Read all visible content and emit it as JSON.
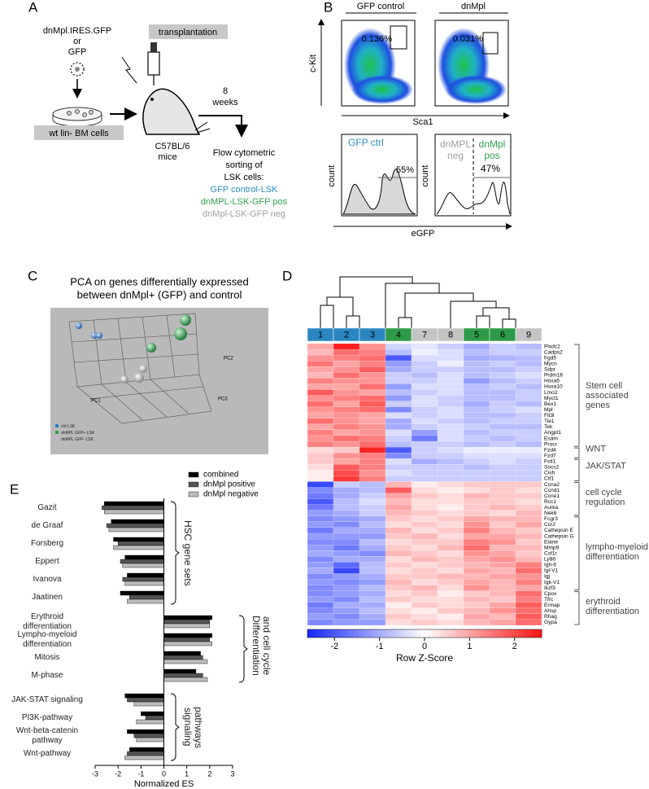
{
  "panel_labels": {
    "a": "A",
    "b": "B",
    "c": "C",
    "d": "D",
    "e": "E"
  },
  "panel_a": {
    "vector_lines": [
      "dnMpl.IRES.GFP",
      "or",
      "GFP"
    ],
    "transplantation": "transplantation",
    "cells": "wt lin- BM cells",
    "mouse_lines": [
      "C57BL/6",
      "mice"
    ],
    "time_lines": [
      "8",
      "weeks"
    ],
    "sorting_lines": [
      "Flow cytometric",
      "sorting of",
      "LSK cells:"
    ],
    "populations": [
      {
        "label": "GFP control-LSK",
        "color": "#2a8fc4"
      },
      {
        "label": "dnMPL-LSK-GFP pos",
        "color": "#2ea24b"
      },
      {
        "label": "dnMpl-LSK-GFP neg",
        "color": "#a0a0a0"
      }
    ]
  },
  "panel_b": {
    "conditions": [
      "GFP control",
      "dnMpl"
    ],
    "gate_percentages": [
      "0.136%",
      "0.031%"
    ],
    "y_label": "c-Kit",
    "x_label": "Sca1",
    "hist_ctrl": {
      "label": "GFP ctrl",
      "color": "#2a8fc4",
      "percentage": "55%"
    },
    "hist_dnmpl": {
      "neg_lines": [
        "dnMPL",
        "neg"
      ],
      "neg_color": "#a0a0a0",
      "pos_lines": [
        "dnMpl",
        "pos"
      ],
      "pos_color": "#2ea24b",
      "percentage": "47%"
    },
    "hist_y_label": "count",
    "hist_x_label": "eGFP"
  },
  "panel_c": {
    "title_lines": [
      "PCA on genes differentially expressed",
      "between dnMpl+ (GFP) and control"
    ],
    "legend": [
      {
        "label": "ctrl LSK",
        "color": "#2a7fc0"
      },
      {
        "label": "dnMPL GFP+ LSK",
        "color": "#2f9a4a"
      },
      {
        "label": "dnMPL GFP- LSK",
        "color": "#bbbbbb"
      }
    ],
    "axis_labels": [
      "PC1",
      "PC2",
      "PC3"
    ]
  },
  "heatmap": {
    "columns": [
      "1",
      "2",
      "3",
      "4",
      "7",
      "8",
      "5",
      "6",
      "9"
    ],
    "column_colors": [
      "#2a86c0",
      "#2a86c0",
      "#2a86c0",
      "#2e9a47",
      "#c4c4c4",
      "#c4c4c4",
      "#2e9a47",
      "#2e9a47",
      "#c4c4c4"
    ],
    "groups": [
      {
        "label": "Stem cell associated genes",
        "genes": [
          "Plxdc2",
          "Cadps2",
          "Fgd5",
          "Mycn",
          "Sdpr",
          "Prdm16",
          "Hoxa5",
          "Hoxa10",
          "Lmo2",
          "Myct1",
          "Bex1",
          "Mpl",
          "Flt3l",
          "Tie1",
          "Tek",
          "Angpt1",
          "Esam",
          "Procr"
        ],
        "values": [
          [
            1,
            2.5,
            1.2,
            -0.5,
            -0.3,
            -0.6,
            -1,
            -0.6,
            -0.8
          ],
          [
            0.8,
            1.6,
            1.4,
            -0.8,
            -0.2,
            -0.4,
            -0.8,
            -0.6,
            -0.6
          ],
          [
            1.2,
            1.4,
            1.6,
            -2,
            -0.4,
            -0.4,
            -1,
            -0.9,
            -0.8
          ],
          [
            1.5,
            1,
            1.4,
            -1.2,
            -0.6,
            -0.2,
            -0.8,
            -0.6,
            -0.8
          ],
          [
            1,
            1.2,
            1.8,
            -1,
            -0.6,
            -0.6,
            -0.8,
            -0.8,
            -0.6
          ],
          [
            0.8,
            1.6,
            1.2,
            -0.6,
            -0.8,
            -0.4,
            -0.8,
            -0.6,
            -0.4
          ],
          [
            1.4,
            1.2,
            1.2,
            -0.6,
            -0.6,
            -0.4,
            -1.2,
            -0.8,
            -0.6
          ],
          [
            1,
            1,
            1.6,
            -1.2,
            -0.4,
            -0.4,
            -0.8,
            -0.6,
            -0.8
          ],
          [
            1.8,
            1.2,
            1,
            -0.8,
            -0.6,
            -0.4,
            -0.8,
            -0.8,
            -0.6
          ],
          [
            1.2,
            1.4,
            1.6,
            -1.2,
            -0.4,
            -0.6,
            -0.8,
            -0.8,
            -0.6
          ],
          [
            1.6,
            1,
            1.8,
            -0.6,
            -0.4,
            -0.6,
            -1,
            -0.6,
            -0.8
          ],
          [
            1.2,
            1.4,
            1.6,
            -1.4,
            -0.6,
            -0.4,
            -0.8,
            -0.6,
            -0.4
          ],
          [
            1,
            1.2,
            1,
            -0.4,
            -0.6,
            -0.4,
            -0.8,
            -0.8,
            -0.6
          ],
          [
            1.6,
            1.2,
            1,
            -1,
            -0.4,
            -0.6,
            -0.8,
            -0.6,
            -0.6
          ],
          [
            1,
            1.4,
            1.2,
            -1,
            -0.6,
            -0.4,
            -0.6,
            -0.8,
            -0.8
          ],
          [
            1.4,
            1,
            1.2,
            -0.4,
            -1.2,
            -0.4,
            -0.8,
            -0.6,
            -0.6
          ],
          [
            1.2,
            1.6,
            1.4,
            -0.6,
            -1.6,
            -0.4,
            -0.6,
            -0.8,
            -0.6
          ],
          [
            1.4,
            1.2,
            1.6,
            -0.8,
            -0.6,
            -0.6,
            -0.8,
            -0.6,
            -0.8
          ]
        ]
      },
      {
        "label": "WNT",
        "genes": [
          "Fzd4",
          "Fzd7"
        ],
        "values": [
          [
            0.4,
            0.6,
            2.4,
            -2,
            -0.6,
            -0.4,
            -0.2,
            -0.2,
            -0.2
          ],
          [
            0.6,
            1.2,
            1.4,
            -1.4,
            -0.6,
            -0.6,
            -0.4,
            -0.4,
            -0.4
          ]
        ]
      },
      {
        "label": "JAK/STAT",
        "genes": [
          "Fstl1",
          "Socs2",
          "Cish",
          "Ctf1"
        ],
        "values": [
          [
            0.6,
            1,
            1.4,
            -0.4,
            -1,
            -0.8,
            -0.6,
            -0.4,
            -0.6
          ],
          [
            0.4,
            1.8,
            1.4,
            -0.6,
            -0.6,
            -0.6,
            -0.8,
            -0.6,
            -0.6
          ],
          [
            0.2,
            2,
            1.2,
            -0.4,
            -0.6,
            -0.6,
            -0.6,
            -0.6,
            -0.6
          ],
          [
            0.2,
            2.2,
            1.4,
            -0.6,
            -0.6,
            -0.6,
            -0.6,
            -0.6,
            -0.6
          ]
        ]
      },
      {
        "label": "cell cycle regulation",
        "genes": [
          "Ccna2",
          "Ccnd1",
          "Ccne1",
          "Rcc1",
          "Aurka",
          "Nek6"
        ],
        "values": [
          [
            -2.2,
            -0.6,
            -0.8,
            0.8,
            0.2,
            0.4,
            0.6,
            0.6,
            0.6
          ],
          [
            -1.4,
            -1,
            -0.8,
            1.8,
            0.4,
            0.2,
            0.4,
            0.6,
            0.4
          ],
          [
            -1.6,
            -1,
            -0.6,
            1,
            0.6,
            0.4,
            0.8,
            0.6,
            0.6
          ],
          [
            -2,
            -0.8,
            -0.4,
            0.8,
            0.4,
            0.4,
            0.6,
            0.6,
            0.4
          ],
          [
            -1.6,
            -0.8,
            -0.6,
            1,
            0.4,
            0.2,
            0.6,
            0.8,
            0.6
          ],
          [
            -1.2,
            -1,
            -0.6,
            0.8,
            0.6,
            0.4,
            0.6,
            0.4,
            0.8
          ]
        ]
      },
      {
        "label": "lympho-myeloid differentiation",
        "genes": [
          "Fcgr3",
          "Ccr2",
          "Cathepsin E",
          "Cathepsin G",
          "Elane",
          "Mmp9",
          "Csf1r",
          "Ly86",
          "Igh-6",
          "Igl-V1",
          "Igj",
          "Igk-V1",
          "Ikzf3"
        ],
        "values": [
          [
            -1.4,
            -1.2,
            -1,
            0.6,
            0.4,
            0.6,
            1,
            0.8,
            0.8
          ],
          [
            -1.2,
            -1.4,
            -0.8,
            0.4,
            0.6,
            0.4,
            1.2,
            0.6,
            1
          ],
          [
            -1.6,
            -1,
            -1,
            0.8,
            0.4,
            0.6,
            1.4,
            0.8,
            0.6
          ],
          [
            -1.2,
            -1.2,
            -1.2,
            0.6,
            0.8,
            0.4,
            1,
            1,
            0.8
          ],
          [
            -1.4,
            -1.4,
            -0.8,
            0.4,
            0.6,
            0.6,
            1.4,
            1.2,
            0.6
          ],
          [
            -1.2,
            -1.6,
            -1,
            0.6,
            0.4,
            0.8,
            1.6,
            0.8,
            0.8
          ],
          [
            -1,
            -1.2,
            -1.4,
            0.8,
            0.6,
            0.4,
            1.2,
            1,
            0.6
          ],
          [
            -1.4,
            -1,
            -1,
            0.4,
            0.8,
            0.6,
            1,
            1.2,
            0.8
          ],
          [
            -1.2,
            -1.8,
            -0.8,
            0.6,
            0.4,
            0.6,
            0.8,
            1,
            1.4
          ],
          [
            -1,
            -2.2,
            -0.8,
            0.4,
            0.6,
            0.4,
            1,
            0.8,
            1.6
          ],
          [
            -1.4,
            -1.2,
            -1,
            0.6,
            0.6,
            0.8,
            0.8,
            1,
            1.2
          ],
          [
            -1.2,
            -1.4,
            -1.2,
            0.8,
            0.4,
            0.6,
            1,
            0.8,
            1.4
          ],
          [
            -1.4,
            -1.2,
            -0.8,
            0.6,
            0.8,
            0.4,
            1.2,
            0.8,
            1
          ]
        ]
      },
      {
        "label": "erythroid differentiation",
        "genes": [
          "Cpox",
          "Tfrc",
          "Ermap",
          "Ahsp",
          "Rhag",
          "Gypa"
        ],
        "values": [
          [
            -1.4,
            -1.2,
            -1,
            0.4,
            0.6,
            0.2,
            0.6,
            0.8,
            1.6
          ],
          [
            -1.2,
            -1.4,
            -0.8,
            0.6,
            0.4,
            0.4,
            0.8,
            0.6,
            1.4
          ],
          [
            -1.6,
            -1,
            -1,
            0.2,
            0.6,
            0.4,
            0.6,
            1,
            1.8
          ],
          [
            -1.4,
            -1.2,
            -0.8,
            0.4,
            0.2,
            0.6,
            0.8,
            1.2,
            1.6
          ],
          [
            -1.2,
            -1.4,
            -1,
            0.6,
            0.4,
            0.2,
            1,
            0.8,
            1.8
          ],
          [
            -1.4,
            -1.2,
            -1.2,
            0.4,
            0.6,
            0.4,
            0.8,
            1,
            1.6
          ]
        ]
      }
    ],
    "color_key": {
      "lim": [
        -2.6,
        2.6
      ],
      "ticks": [
        -2,
        -1,
        0,
        1,
        2
      ],
      "label": "Row Z-Score"
    }
  },
  "chart_data": {
    "type": "bar",
    "orientation": "horizontal",
    "categories": [
      "Gazit",
      "de Graaf",
      "Forsberg",
      "Eppert",
      "Ivanova",
      "Jaatinen",
      "Erythroid differentiation",
      "Lympho-myeloid differentiation",
      "Mitosis",
      "M-phase",
      "JAK-STAT signaling",
      "PI3K-pathway",
      "Wnt-beta-catenin pathway",
      "Wnt-pathway"
    ],
    "series": [
      {
        "name": "combined",
        "color": "#000000",
        "values": [
          -2.6,
          -2.3,
          -2.2,
          -1.7,
          -1.6,
          -1.9,
          2.1,
          2.1,
          1.6,
          1.4,
          -1.7,
          -1.0,
          -1.6,
          -1.5
        ]
      },
      {
        "name": "dnMpl positive",
        "color": "#555555",
        "values": [
          -2.7,
          -2.5,
          -2.0,
          -1.9,
          -1.8,
          -1.5,
          2.0,
          2.0,
          1.7,
          1.7,
          -1.6,
          -0.8,
          -1.3,
          -1.6
        ]
      },
      {
        "name": "dnMpl negative",
        "color": "#bbbbbb",
        "values": [
          -2.6,
          -2.4,
          -2.2,
          -1.8,
          -1.7,
          -1.6,
          2.0,
          2.1,
          1.9,
          1.9,
          -1.3,
          -1.2,
          -1.2,
          -1.7
        ]
      }
    ],
    "group_labels": [
      "HSC gene sets",
      "Differentiation and cell cycle",
      "signaling pathways"
    ],
    "xlabel": "Normalized ES",
    "xlim": [
      -3,
      3
    ],
    "xticks": [
      -3,
      -2,
      -1,
      0,
      1,
      2,
      3
    ]
  }
}
